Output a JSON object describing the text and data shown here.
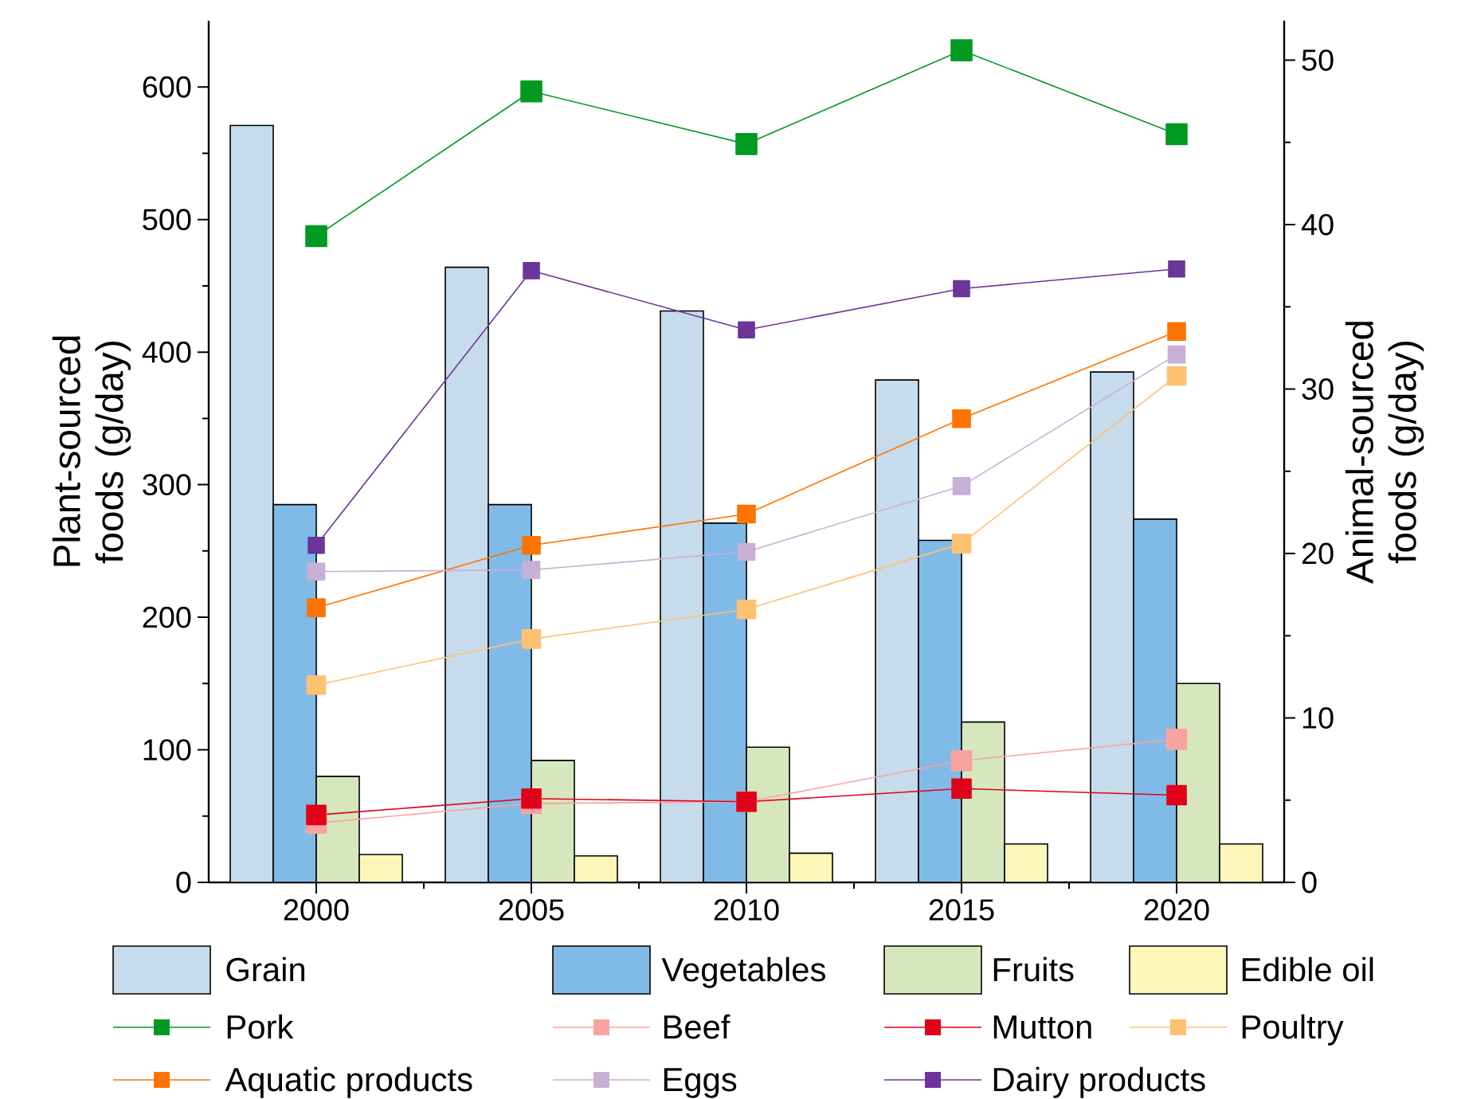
{
  "chart_data": {
    "type": "bar",
    "categories": [
      "2000",
      "2005",
      "2010",
      "2015",
      "2020"
    ],
    "ylabel": "Plant-sourced foods (g/day)",
    "y2label": "Animal-sourced foods (g/day)",
    "ylim": [
      0,
      650
    ],
    "yticks": [
      0,
      100,
      200,
      300,
      400,
      500,
      600
    ],
    "y2lim": [
      0,
      52.4
    ],
    "y2ticks": [
      0,
      10,
      20,
      30,
      40,
      50
    ],
    "legend": "bottom",
    "marker": "square",
    "series": [
      {
        "name": "Grain",
        "color": "#c6dbeb",
        "values": [
          571,
          464,
          431,
          379,
          385
        ]
      },
      {
        "name": "Vegetables",
        "color": "#80bbe8",
        "values": [
          285,
          285,
          271,
          258,
          274
        ]
      },
      {
        "name": "Fruits",
        "color": "#d6e7bd",
        "values": [
          80,
          92,
          102,
          121,
          150
        ]
      },
      {
        "name": "Edible oil",
        "color": "#fdf6b9",
        "values": [
          21,
          20,
          22,
          29,
          29
        ]
      },
      {
        "name": "Pork",
        "type": "line",
        "axis": "y2",
        "color": "#009a21",
        "values": [
          39.3,
          48.1,
          44.9,
          50.6,
          45.5
        ]
      },
      {
        "name": "Beef",
        "type": "line",
        "axis": "y2",
        "color": "#f9a3a1",
        "values": [
          3.6,
          4.8,
          4.9,
          7.4,
          8.7
        ]
      },
      {
        "name": "Mutton",
        "type": "line",
        "axis": "y2",
        "color": "#e00019",
        "values": [
          4.1,
          5.1,
          4.9,
          5.7,
          5.3
        ]
      },
      {
        "name": "Poultry",
        "type": "line",
        "axis": "y2",
        "color": "#fdc172",
        "values": [
          12.0,
          14.8,
          16.6,
          20.6,
          30.8
        ]
      },
      {
        "name": "Aquatic products",
        "type": "line",
        "axis": "y2",
        "color": "#ff7400",
        "values": [
          16.7,
          20.5,
          22.4,
          28.2,
          33.5
        ]
      },
      {
        "name": "Eggs",
        "type": "line",
        "axis": "y2",
        "color": "#c8afd5",
        "values": [
          18.9,
          19.0,
          20.1,
          24.1,
          32.1
        ]
      },
      {
        "name": "Dairy products",
        "type": "line",
        "axis": "y2",
        "color": "#6b3599",
        "values": [
          20.5,
          37.2,
          33.6,
          36.1,
          37.3
        ]
      }
    ]
  }
}
